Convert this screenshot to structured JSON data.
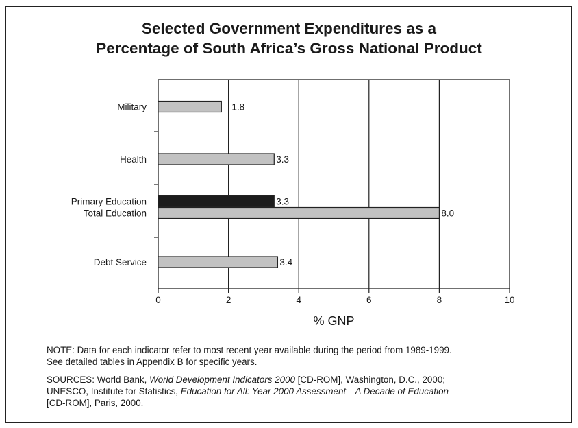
{
  "title_line1": "Selected Government Expenditures as a",
  "title_line2": "Percentage of South Africa’s Gross National Product",
  "chart_data": {
    "type": "bar",
    "orientation": "horizontal",
    "title": "Selected Government Expenditures as a Percentage of South Africa’s Gross National Product",
    "xlabel": "% GNP",
    "xlim": [
      0,
      10
    ],
    "xticks": [
      "0",
      "2",
      "4",
      "6",
      "8",
      "10"
    ],
    "grid": "vertical",
    "legend": "none",
    "colors": {
      "gray_bar": "#c2c2c2",
      "dark_bar": "#1c1c1c",
      "outline": "#222222"
    },
    "bars": [
      {
        "category": "Military",
        "value": 1.8,
        "label": "1.8",
        "color": "gray"
      },
      {
        "category": "Health",
        "value": 3.3,
        "label": "3.3",
        "color": "gray"
      },
      {
        "category": "Primary Education",
        "value": 3.3,
        "label": "3.3",
        "color": "dark"
      },
      {
        "category": "Total Education",
        "value": 8.0,
        "label": "8.0",
        "color": "gray"
      },
      {
        "category": "Debt Service",
        "value": 3.4,
        "label": "3.4",
        "color": "gray"
      }
    ]
  },
  "note": {
    "line1": "NOTE: Data for each indicator refer to most recent year available during the period from 1989-1999.",
    "line2": "See detailed tables in Appendix B for specific years."
  },
  "sources": {
    "prefix": "SOURCES: World Bank, ",
    "wdi": "World Development Indicators 2000",
    "mid1": " [CD-ROM], Washington, D.C., 2000;",
    "unesco": "UNESCO, Institute for Statistics, ",
    "efa": "Education for All: Year 2000 Assessment—A Decade of Education",
    "tail": "[CD-ROM], Paris, 2000."
  }
}
